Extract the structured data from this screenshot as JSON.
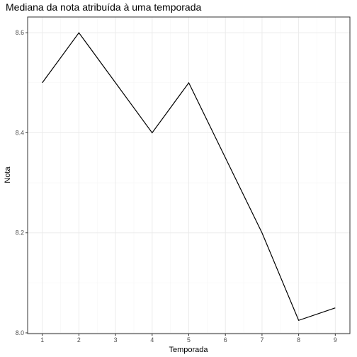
{
  "chart_data": {
    "type": "line",
    "title": "Mediana da nota atribuída à uma temporada",
    "xlabel": "Temporada",
    "ylabel": "Nota",
    "x": [
      1,
      2,
      3,
      4,
      5,
      6,
      7,
      8,
      9
    ],
    "y": [
      8.5,
      8.6,
      8.5,
      8.4,
      8.5,
      8.35,
      8.2,
      8.025,
      8.05
    ],
    "x_ticks": [
      "1",
      "2",
      "3",
      "4",
      "5",
      "6",
      "7",
      "8",
      "9"
    ],
    "y_ticks": [
      "8.0",
      "8.2",
      "8.4",
      "8.6"
    ],
    "xlim": [
      0.6,
      9.4
    ],
    "ylim": [
      7.9985,
      8.6315
    ],
    "grid": true,
    "line_color": "#000000",
    "panel_border_color": "#333333",
    "grid_major_color": "#ebebeb",
    "grid_minor_color": "#f5f5f5"
  }
}
